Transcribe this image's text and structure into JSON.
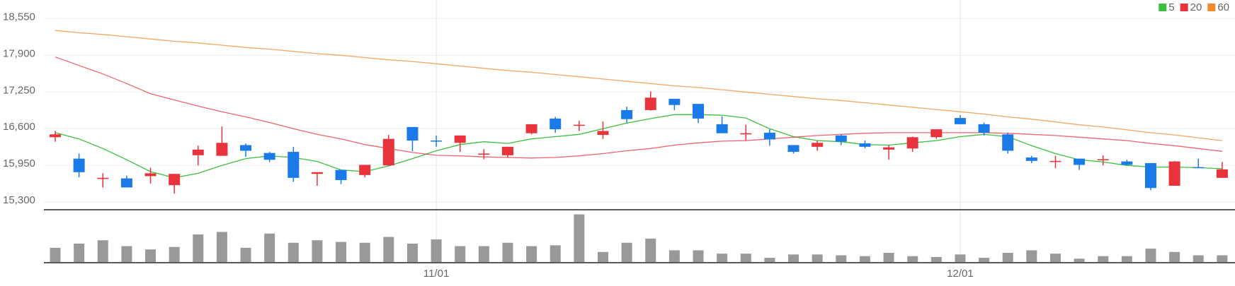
{
  "chart_data": {
    "type": "candlestick",
    "categories": [
      null,
      null,
      null,
      null,
      null,
      null,
      null,
      null,
      null,
      null,
      null,
      null,
      null,
      null,
      null,
      null,
      "11/01",
      null,
      null,
      null,
      null,
      null,
      null,
      null,
      null,
      null,
      null,
      null,
      null,
      null,
      null,
      null,
      null,
      null,
      null,
      null,
      null,
      null,
      "12/01",
      null,
      null,
      null,
      null,
      null,
      null,
      null,
      null,
      null,
      null,
      null
    ],
    "open": [
      16450,
      16070,
      15710,
      15720,
      15760,
      15600,
      16130,
      16120,
      16310,
      16170,
      16190,
      15800,
      15870,
      15780,
      15950,
      16630,
      16390,
      16350,
      16140,
      16130,
      16520,
      16780,
      16660,
      16490,
      16930,
      16930,
      17130,
      17040,
      16680,
      16500,
      16530,
      16310,
      16280,
      16480,
      16340,
      16230,
      16250,
      16450,
      16790,
      16680,
      16500,
      16090,
      16020,
      16070,
      16050,
      16020,
      15990,
      15590,
      15920,
      15730
    ],
    "high": [
      16560,
      16160,
      15810,
      15770,
      15910,
      15800,
      16300,
      16640,
      16340,
      16190,
      16280,
      15830,
      15870,
      15960,
      16490,
      16630,
      16480,
      16480,
      16240,
      16280,
      16680,
      16810,
      16740,
      16730,
      16990,
      17260,
      17130,
      17040,
      16820,
      16670,
      16590,
      16310,
      16390,
      16500,
      16390,
      16310,
      16460,
      16590,
      16840,
      16710,
      16530,
      16120,
      16120,
      16070,
      16130,
      16050,
      15990,
      16030,
      16070,
      16010
    ],
    "low": [
      16370,
      15740,
      15560,
      15560,
      15630,
      15450,
      15950,
      16120,
      16100,
      16010,
      15660,
      15590,
      15620,
      15740,
      15940,
      16200,
      16280,
      16190,
      16060,
      16090,
      16500,
      16530,
      16560,
      16420,
      16710,
      16920,
      16930,
      16700,
      16520,
      16390,
      16300,
      16160,
      16210,
      16310,
      16250,
      16050,
      16190,
      16420,
      16680,
      16480,
      16160,
      15990,
      15900,
      15870,
      15950,
      15950,
      15510,
      15590,
      15900,
      15730
    ],
    "close": [
      16500,
      15830,
      15730,
      15560,
      15810,
      15800,
      16230,
      16350,
      16210,
      16050,
      15730,
      15830,
      15690,
      15960,
      16420,
      16390,
      16380,
      16480,
      16160,
      16280,
      16680,
      16590,
      16670,
      16560,
      16770,
      17150,
      17020,
      16780,
      16520,
      16520,
      16410,
      16190,
      16350,
      16370,
      16280,
      16270,
      16450,
      16590,
      16680,
      16530,
      16210,
      16030,
      16030,
      15960,
      16060,
      15960,
      15550,
      16020,
      15910,
      15880
    ],
    "volume": [
      17,
      22,
      26,
      19,
      15,
      18,
      33,
      36,
      17,
      34,
      23,
      26,
      24,
      23,
      30,
      22,
      27,
      19,
      19,
      23,
      19,
      20,
      57,
      12,
      23,
      28,
      14,
      14,
      10,
      10,
      5,
      9,
      9,
      8,
      7,
      11,
      7,
      6,
      9,
      5,
      11,
      14,
      10,
      4,
      7,
      7,
      16,
      12,
      8,
      8
    ],
    "volume_ylim": [
      0,
      60
    ],
    "up_color": "#e8323c",
    "down_color": "#1a7ae8",
    "volume_color": "#999999",
    "series": [
      {
        "name": "5",
        "color": "#3cc03c",
        "values": [
          16530,
          16420,
          16250,
          16050,
          15840,
          15730,
          15810,
          15950,
          16070,
          16120,
          16090,
          16020,
          15870,
          15840,
          15940,
          16070,
          16210,
          16320,
          16370,
          16340,
          16420,
          16460,
          16500,
          16600,
          16700,
          16780,
          16850,
          16850,
          16840,
          16790,
          16600,
          16460,
          16390,
          16370,
          16320,
          16310,
          16350,
          16390,
          16460,
          16500,
          16460,
          16300,
          16160,
          16050,
          16010,
          15950,
          15920,
          15920,
          15910,
          15890
        ]
      },
      {
        "name": "20",
        "color": "#e8323c",
        "values": [
          17870,
          17720,
          17570,
          17400,
          17220,
          17110,
          17000,
          16900,
          16810,
          16710,
          16600,
          16500,
          16420,
          16320,
          16250,
          16180,
          16130,
          16120,
          16100,
          16090,
          16080,
          16090,
          16120,
          16160,
          16210,
          16250,
          16310,
          16350,
          16380,
          16390,
          16420,
          16450,
          16480,
          16500,
          16520,
          16530,
          16530,
          16530,
          16530,
          16530,
          16520,
          16500,
          16480,
          16450,
          16420,
          16390,
          16340,
          16300,
          16250,
          16200
        ]
      },
      {
        "name": "60",
        "color": "#f08a2c",
        "values": [
          18340,
          18300,
          18270,
          18230,
          18190,
          18150,
          18120,
          18080,
          18040,
          18010,
          17970,
          17930,
          17900,
          17860,
          17820,
          17790,
          17750,
          17710,
          17670,
          17630,
          17600,
          17560,
          17520,
          17480,
          17440,
          17400,
          17360,
          17330,
          17290,
          17250,
          17210,
          17170,
          17130,
          17100,
          17060,
          17020,
          16980,
          16940,
          16900,
          16860,
          16810,
          16770,
          16720,
          16670,
          16630,
          16580,
          16530,
          16490,
          16440,
          16390
        ]
      }
    ],
    "ylim": [
      15190,
      18880
    ],
    "yticks": [
      {
        "value": 15300,
        "label": "15,300"
      },
      {
        "value": 15950,
        "label": "15,950"
      },
      {
        "value": 16600,
        "label": "16,600"
      },
      {
        "value": 17250,
        "label": "17,250"
      },
      {
        "value": 17900,
        "label": "17,900"
      },
      {
        "value": 18550,
        "label": "18,550"
      }
    ],
    "grid": true
  }
}
